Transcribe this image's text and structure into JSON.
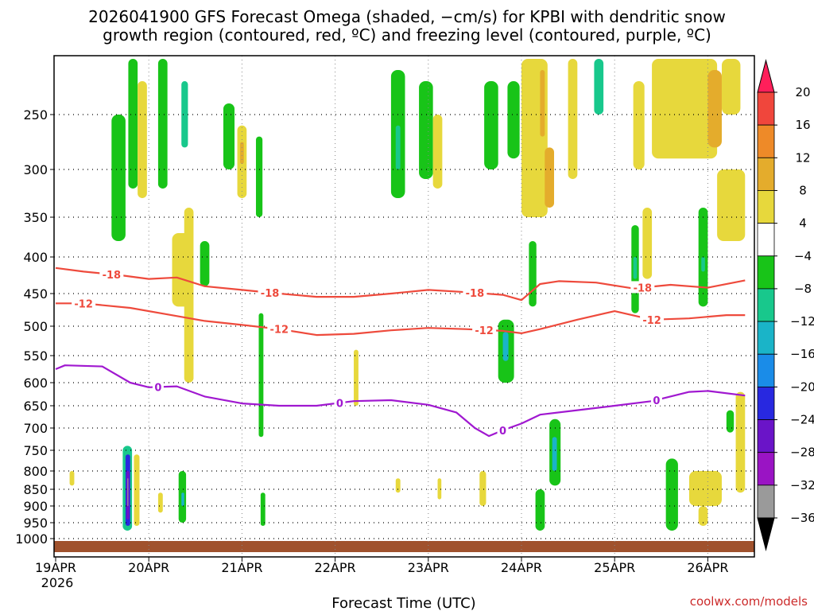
{
  "chart_data": {
    "type": "heatmap",
    "title_line1": "2026041900 GFS Forecast Omega (shaded, −cm/s) for KPBI with dendritic snow",
    "title_line2": "growth region (contoured, red, ºC) and freezing level (contoured, purple, ºC)",
    "xlabel": "Forecast Time (UTC)",
    "x_start_label": "19APR",
    "x_start_year": "2026",
    "x_range_days": [
      0,
      7.4
    ],
    "x_ticks": [
      {
        "day": 0,
        "label": "19APR"
      },
      {
        "day": 1,
        "label": "20APR"
      },
      {
        "day": 2,
        "label": "21APR"
      },
      {
        "day": 3,
        "label": "22APR"
      },
      {
        "day": 4,
        "label": "23APR"
      },
      {
        "day": 5,
        "label": "24APR"
      },
      {
        "day": 6,
        "label": "25APR"
      },
      {
        "day": 7,
        "label": "26APR"
      }
    ],
    "y_axis_unit": "hPa",
    "y_range_hpa": [
      1025,
      200
    ],
    "y_ticks": [
      1000,
      950,
      900,
      850,
      800,
      750,
      700,
      650,
      600,
      550,
      500,
      450,
      400,
      350,
      300,
      250
    ],
    "colorbar": {
      "levels": [
        "20",
        "16",
        "12",
        "8",
        "4",
        "−4",
        "−8",
        "−12",
        "−16",
        "−20",
        "−24",
        "−28",
        "−32",
        "−36"
      ],
      "colors": [
        "#ff1f5a",
        "#f0463c",
        "#ee8a28",
        "#e4ac2c",
        "#e7d83c",
        "#ffffff",
        "#18c418",
        "#18c88c",
        "#1ab4c8",
        "#1a8ce8",
        "#2828e0",
        "#6a14c8",
        "#9a14c4",
        "#9a9a9a",
        "#000000"
      ]
    },
    "contours": [
      {
        "name": "-18C",
        "label": "-18",
        "color": "#ee4a3c",
        "x": [
          0,
          0.3,
          0.7,
          1.0,
          1.3,
          1.6,
          2.0,
          2.4,
          2.8,
          3.2,
          3.6,
          4.0,
          4.4,
          4.8,
          5.0,
          5.2,
          5.4,
          5.8,
          6.2,
          6.6,
          7.0,
          7.4
        ],
        "y": [
          415,
          420,
          425,
          430,
          428,
          440,
          445,
          450,
          455,
          455,
          450,
          445,
          448,
          452,
          460,
          437,
          433,
          435,
          443,
          438,
          442,
          432
        ],
        "labels_at": [
          0.6,
          2.3,
          4.5,
          6.3
        ]
      },
      {
        "name": "-12C",
        "label": "-12",
        "color": "#ee4a3c",
        "x": [
          0,
          0.3,
          0.8,
          1.2,
          1.6,
          2.0,
          2.4,
          2.8,
          3.2,
          3.6,
          4.0,
          4.4,
          4.8,
          5.0,
          5.2,
          5.6,
          6.0,
          6.4,
          6.8,
          7.2,
          7.4
        ],
        "y": [
          465,
          465,
          472,
          482,
          492,
          498,
          505,
          515,
          513,
          507,
          503,
          505,
          508,
          512,
          505,
          490,
          477,
          490,
          488,
          483,
          483
        ],
        "labels_at": [
          0.3,
          2.4,
          4.6,
          6.4
        ]
      },
      {
        "name": "0C",
        "label": "0",
        "color": "#a018d0",
        "x": [
          0,
          0.1,
          0.5,
          0.8,
          1.0,
          1.3,
          1.6,
          2.0,
          2.4,
          2.8,
          3.2,
          3.6,
          4.0,
          4.3,
          4.5,
          4.65,
          4.8,
          5.0,
          5.2,
          5.6,
          6.0,
          6.4,
          6.8,
          7.0,
          7.4
        ],
        "y": [
          575,
          568,
          570,
          600,
          610,
          608,
          630,
          645,
          650,
          650,
          640,
          638,
          648,
          665,
          700,
          718,
          705,
          690,
          670,
          660,
          650,
          640,
          620,
          618,
          628
        ],
        "labels_at": [
          1.1,
          3.05,
          4.8,
          6.45
        ]
      }
    ],
    "omega_cells": [
      {
        "x0": 0.6,
        "x1": 0.75,
        "p0": 250,
        "p1": 380,
        "v": -5
      },
      {
        "x0": 0.78,
        "x1": 0.88,
        "p0": 200,
        "p1": 320,
        "v": -6
      },
      {
        "x0": 0.88,
        "x1": 0.98,
        "p0": 220,
        "p1": 330,
        "v": 5
      },
      {
        "x0": 1.1,
        "x1": 1.2,
        "p0": 200,
        "p1": 320,
        "v": -5
      },
      {
        "x0": 1.35,
        "x1": 1.42,
        "p0": 220,
        "p1": 280,
        "v": -10
      },
      {
        "x0": 1.25,
        "x1": 1.45,
        "p0": 370,
        "p1": 470,
        "v": 5
      },
      {
        "x0": 1.55,
        "x1": 1.65,
        "p0": 380,
        "p1": 440,
        "v": -5
      },
      {
        "x0": 1.8,
        "x1": 1.92,
        "p0": 240,
        "p1": 300,
        "v": -5
      },
      {
        "x0": 1.95,
        "x1": 2.05,
        "p0": 260,
        "p1": 330,
        "v": 5
      },
      {
        "x0": 1.98,
        "x1": 2.02,
        "p0": 275,
        "p1": 295,
        "v": 10
      },
      {
        "x0": 2.15,
        "x1": 2.22,
        "p0": 270,
        "p1": 350,
        "v": -5
      },
      {
        "x0": 3.6,
        "x1": 3.75,
        "p0": 210,
        "p1": 330,
        "v": -6
      },
      {
        "x0": 3.65,
        "x1": 3.7,
        "p0": 260,
        "p1": 300,
        "v": -11
      },
      {
        "x0": 3.9,
        "x1": 4.05,
        "p0": 220,
        "p1": 310,
        "v": -5
      },
      {
        "x0": 4.05,
        "x1": 4.15,
        "p0": 250,
        "p1": 320,
        "v": 5
      },
      {
        "x0": 4.6,
        "x1": 4.75,
        "p0": 220,
        "p1": 300,
        "v": -5
      },
      {
        "x0": 4.85,
        "x1": 4.98,
        "p0": 220,
        "p1": 290,
        "v": -5
      },
      {
        "x0": 5.0,
        "x1": 5.28,
        "p0": 200,
        "p1": 350,
        "v": 5
      },
      {
        "x0": 5.2,
        "x1": 5.25,
        "p0": 210,
        "p1": 270,
        "v": 8
      },
      {
        "x0": 5.25,
        "x1": 5.35,
        "p0": 280,
        "p1": 340,
        "v": 8
      },
      {
        "x0": 5.5,
        "x1": 5.6,
        "p0": 200,
        "p1": 310,
        "v": 5
      },
      {
        "x0": 5.78,
        "x1": 5.88,
        "p0": 200,
        "p1": 250,
        "v": -10
      },
      {
        "x0": 6.2,
        "x1": 6.32,
        "p0": 220,
        "p1": 300,
        "v": 5
      },
      {
        "x0": 6.4,
        "x1": 7.1,
        "p0": 200,
        "p1": 290,
        "v": 5
      },
      {
        "x0": 7.0,
        "x1": 7.15,
        "p0": 210,
        "p1": 280,
        "v": 8
      },
      {
        "x0": 7.1,
        "x1": 7.4,
        "p0": 300,
        "p1": 380,
        "v": 5
      },
      {
        "x0": 7.15,
        "x1": 7.35,
        "p0": 200,
        "p1": 250,
        "v": 5
      },
      {
        "x0": 5.08,
        "x1": 5.16,
        "p0": 380,
        "p1": 470,
        "v": -5
      },
      {
        "x0": 6.18,
        "x1": 6.26,
        "p0": 360,
        "p1": 480,
        "v": -5
      },
      {
        "x0": 6.2,
        "x1": 6.24,
        "p0": 400,
        "p1": 430,
        "v": -10
      },
      {
        "x0": 6.3,
        "x1": 6.4,
        "p0": 340,
        "p1": 430,
        "v": 5
      },
      {
        "x0": 6.9,
        "x1": 7.0,
        "p0": 340,
        "p1": 470,
        "v": -5
      },
      {
        "x0": 6.93,
        "x1": 6.97,
        "p0": 400,
        "p1": 420,
        "v": -11
      },
      {
        "x0": 4.75,
        "x1": 4.92,
        "p0": 490,
        "p1": 600,
        "v": -6
      },
      {
        "x0": 4.8,
        "x1": 4.86,
        "p0": 510,
        "p1": 560,
        "v": -12
      },
      {
        "x0": 2.18,
        "x1": 2.23,
        "p0": 480,
        "p1": 720,
        "v": -6
      },
      {
        "x0": 1.38,
        "x1": 1.48,
        "p0": 340,
        "p1": 600,
        "v": 5
      },
      {
        "x0": 0.72,
        "x1": 0.82,
        "p0": 740,
        "p1": 975,
        "v": -8
      },
      {
        "x0": 0.75,
        "x1": 0.8,
        "p0": 760,
        "p1": 960,
        "v": -20
      },
      {
        "x0": 0.76,
        "x1": 0.79,
        "p0": 800,
        "p1": 940,
        "v": -26
      },
      {
        "x0": 0.77,
        "x1": 0.78,
        "p0": 820,
        "p1": 900,
        "v": -32
      },
      {
        "x0": 0.84,
        "x1": 0.9,
        "p0": 760,
        "p1": 960,
        "v": 5
      },
      {
        "x0": 1.32,
        "x1": 1.4,
        "p0": 800,
        "p1": 950,
        "v": -6
      },
      {
        "x0": 1.35,
        "x1": 1.38,
        "p0": 860,
        "p1": 900,
        "v": -12
      },
      {
        "x0": 1.1,
        "x1": 1.15,
        "p0": 860,
        "p1": 920,
        "v": 5
      },
      {
        "x0": 2.2,
        "x1": 2.25,
        "p0": 860,
        "p1": 960,
        "v": -5
      },
      {
        "x0": 3.65,
        "x1": 3.7,
        "p0": 820,
        "p1": 860,
        "v": 5
      },
      {
        "x0": 4.1,
        "x1": 4.14,
        "p0": 820,
        "p1": 880,
        "v": 5
      },
      {
        "x0": 4.55,
        "x1": 4.62,
        "p0": 800,
        "p1": 900,
        "v": 5
      },
      {
        "x0": 5.3,
        "x1": 5.42,
        "p0": 680,
        "p1": 840,
        "v": -5
      },
      {
        "x0": 5.33,
        "x1": 5.38,
        "p0": 720,
        "p1": 800,
        "v": -12
      },
      {
        "x0": 5.15,
        "x1": 5.25,
        "p0": 850,
        "p1": 975,
        "v": -6
      },
      {
        "x0": 6.55,
        "x1": 6.68,
        "p0": 770,
        "p1": 975,
        "v": -6
      },
      {
        "x0": 6.8,
        "x1": 7.15,
        "p0": 800,
        "p1": 900,
        "v": 5
      },
      {
        "x0": 6.9,
        "x1": 7.0,
        "p0": 900,
        "p1": 960,
        "v": 5
      },
      {
        "x0": 7.2,
        "x1": 7.28,
        "p0": 660,
        "p1": 710,
        "v": -5
      },
      {
        "x0": 7.3,
        "x1": 7.4,
        "p0": 620,
        "p1": 860,
        "v": 5
      },
      {
        "x0": 3.2,
        "x1": 3.25,
        "p0": 540,
        "p1": 650,
        "v": 5
      },
      {
        "x0": 0.15,
        "x1": 0.2,
        "p0": 800,
        "p1": 840,
        "v": 5
      }
    ]
  },
  "watermark": "coolwx.com/models"
}
